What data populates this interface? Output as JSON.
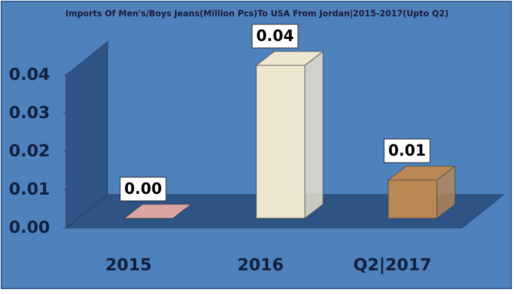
{
  "chart_data": {
    "type": "bar3d",
    "title": "Imports Of Men's/Boys Jeans(Million Pcs)To USA From Jordan|2015-2017(Upto Q2)",
    "categories": [
      "2015",
      "2016",
      "Q2|2017"
    ],
    "values": [
      0,
      0.04,
      0.01
    ],
    "value_labels": [
      "0.00",
      "0.04",
      "0.01"
    ],
    "colors": [
      "#dba4a0",
      "#efe6d0",
      "#b98753"
    ],
    "ylim": [
      0,
      0.04
    ],
    "yticks": [
      {
        "value": 0,
        "label": "0.00"
      },
      0.01,
      0.02,
      0.03,
      0.04
    ]
  }
}
